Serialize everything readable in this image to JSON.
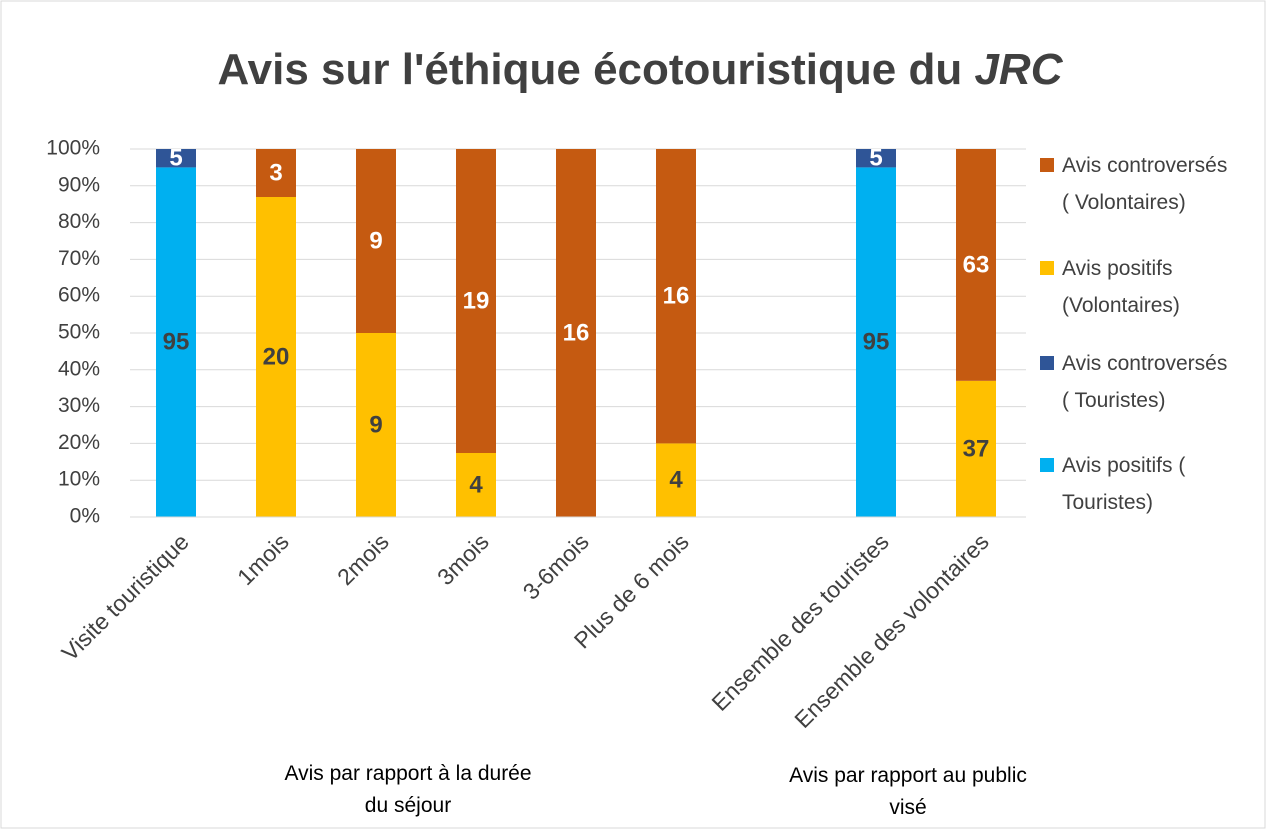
{
  "chart_data": {
    "type": "stacked_percent",
    "title": "Avis sur l'éthique écotouristique du",
    "title_emphasis": "JRC",
    "categories": [
      "Visite touristique",
      "1mois",
      "2mois",
      "3mois",
      "3-6mois",
      "Plus de 6 mois",
      null,
      "Ensemble des touristes",
      "Ensemble des volontaires"
    ],
    "group_labels": [
      "Avis par rapport à la durée du séjour",
      "Avis par rapport au public visé"
    ],
    "series": [
      {
        "name": "Avis positifs ( Touristes)",
        "color": "#00b0f0",
        "label_color": "#404040",
        "values": [
          95,
          null,
          null,
          null,
          null,
          null,
          null,
          95,
          null
        ]
      },
      {
        "name": "Avis controversés ( Touristes)",
        "color": "#2f5597",
        "label_color": "#ffffff",
        "values": [
          5,
          null,
          null,
          null,
          null,
          null,
          null,
          5,
          null
        ]
      },
      {
        "name": "Avis positifs (Volontaires)",
        "color": "#ffc000",
        "label_color": "#404040",
        "values": [
          null,
          20,
          9,
          4,
          null,
          4,
          null,
          null,
          37
        ]
      },
      {
        "name": "Avis controversés ( Volontaires)",
        "color": "#c55a11",
        "label_color": "#ffffff",
        "values": [
          null,
          3,
          9,
          19,
          16,
          16,
          null,
          null,
          63
        ]
      }
    ],
    "ylim": [
      0,
      100
    ],
    "yticks": [
      {
        "value": 0,
        "label": "0%"
      },
      {
        "value": 10,
        "label": "10%"
      },
      {
        "value": 20,
        "label": "20%"
      },
      {
        "value": 30,
        "label": "30%"
      },
      {
        "value": 40,
        "label": "40%"
      },
      {
        "value": 50,
        "label": "50%"
      },
      {
        "value": 60,
        "label": "60%"
      },
      {
        "value": 70,
        "label": "70%"
      },
      {
        "value": 80,
        "label": "80%"
      },
      {
        "value": 90,
        "label": "90%"
      },
      {
        "value": 100,
        "label": "100%"
      }
    ],
    "grid": true,
    "legend": "right"
  }
}
